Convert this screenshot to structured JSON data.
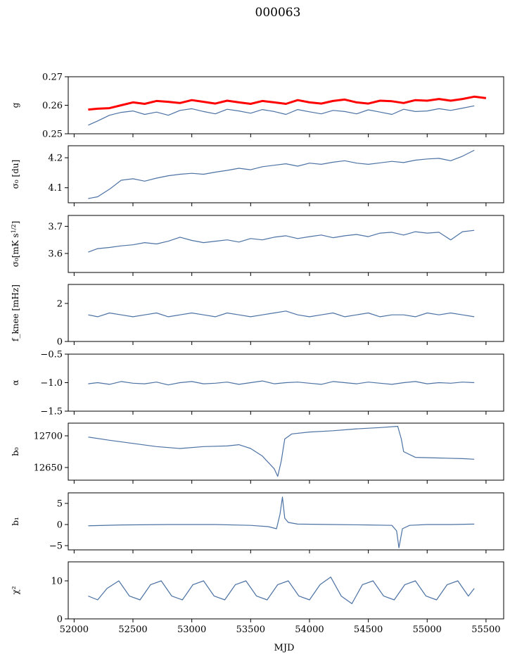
{
  "figure": {
    "title": "000063",
    "xlabel": "MJD"
  },
  "colors": {
    "series": "#4c72a4",
    "reference": "#ff0000"
  },
  "chart_data": [
    {
      "type": "line",
      "ylabel": "g",
      "ylim": [
        0.25,
        0.27
      ],
      "yticks": [
        0.25,
        0.26,
        0.27
      ],
      "yticklabels": [
        "0.25",
        "0.26",
        "0.27"
      ],
      "xlim": [
        51950,
        55650
      ],
      "series": [
        {
          "role": "reference",
          "color": "#ff0000",
          "x": [
            52120,
            52200,
            52300,
            52400,
            52500,
            52600,
            52700,
            52800,
            52900,
            53000,
            53100,
            53200,
            53300,
            53400,
            53500,
            53600,
            53700,
            53800,
            53900,
            54000,
            54100,
            54200,
            54300,
            54400,
            54500,
            54600,
            54700,
            54800,
            54900,
            55000,
            55100,
            55200,
            55300,
            55400,
            55500
          ],
          "y": [
            0.2585,
            0.2588,
            0.259,
            0.26,
            0.261,
            0.2605,
            0.2615,
            0.2612,
            0.2608,
            0.2618,
            0.2612,
            0.2606,
            0.2616,
            0.261,
            0.2605,
            0.2615,
            0.261,
            0.2605,
            0.2618,
            0.261,
            0.2606,
            0.2615,
            0.262,
            0.261,
            0.2606,
            0.2616,
            0.2614,
            0.2608,
            0.2618,
            0.2616,
            0.2622,
            0.2616,
            0.2622,
            0.263,
            0.2625
          ]
        },
        {
          "role": "measured",
          "color": "#4c72a4",
          "x": [
            52120,
            52200,
            52300,
            52400,
            52500,
            52600,
            52700,
            52800,
            52900,
            53000,
            53100,
            53200,
            53300,
            53400,
            53500,
            53600,
            53700,
            53800,
            53900,
            54000,
            54100,
            54200,
            54300,
            54400,
            54500,
            54600,
            54700,
            54800,
            54900,
            55000,
            55100,
            55200,
            55300,
            55400
          ],
          "y": [
            0.253,
            0.2545,
            0.2565,
            0.2575,
            0.258,
            0.2568,
            0.2576,
            0.2565,
            0.2582,
            0.2588,
            0.2578,
            0.257,
            0.2586,
            0.258,
            0.2572,
            0.2585,
            0.2578,
            0.2568,
            0.2585,
            0.2577,
            0.257,
            0.2582,
            0.2578,
            0.257,
            0.2584,
            0.2576,
            0.2568,
            0.2586,
            0.2578,
            0.258,
            0.2588,
            0.2582,
            0.259,
            0.2598
          ]
        }
      ]
    },
    {
      "type": "line",
      "ylabel": "σ₀ [du]",
      "ylim": [
        4.05,
        4.24
      ],
      "yticks": [
        4.1,
        4.2
      ],
      "yticklabels": [
        "4.1",
        "4.2"
      ],
      "xlim": [
        51950,
        55650
      ],
      "series": [
        {
          "role": "measured",
          "color": "#4c72a4",
          "x": [
            52120,
            52200,
            52300,
            52400,
            52500,
            52600,
            52700,
            52800,
            52900,
            53000,
            53100,
            53200,
            53300,
            53400,
            53500,
            53600,
            53700,
            53800,
            53900,
            54000,
            54100,
            54200,
            54300,
            54400,
            54500,
            54600,
            54700,
            54800,
            54900,
            55000,
            55100,
            55200,
            55300,
            55400
          ],
          "y": [
            4.064,
            4.07,
            4.095,
            4.125,
            4.13,
            4.122,
            4.132,
            4.14,
            4.145,
            4.148,
            4.145,
            4.152,
            4.158,
            4.165,
            4.16,
            4.17,
            4.175,
            4.18,
            4.172,
            4.182,
            4.178,
            4.185,
            4.19,
            4.182,
            4.178,
            4.183,
            4.188,
            4.184,
            4.192,
            4.196,
            4.198,
            4.19,
            4.205,
            4.225
          ]
        }
      ]
    },
    {
      "type": "line",
      "ylabel": "σ₀[mK s^1/2]",
      "ylim": [
        3.53,
        3.74
      ],
      "yticks": [
        3.6,
        3.7
      ],
      "yticklabels": [
        "3.6",
        "3.7"
      ],
      "xlim": [
        51950,
        55650
      ],
      "series": [
        {
          "role": "measured",
          "color": "#4c72a4",
          "x": [
            52120,
            52200,
            52300,
            52400,
            52500,
            52600,
            52700,
            52800,
            52900,
            53000,
            53100,
            53200,
            53300,
            53400,
            53500,
            53600,
            53700,
            53800,
            53900,
            54000,
            54100,
            54200,
            54300,
            54400,
            54500,
            54600,
            54700,
            54800,
            54900,
            55000,
            55100,
            55200,
            55300,
            55400
          ],
          "y": [
            3.605,
            3.618,
            3.622,
            3.628,
            3.632,
            3.64,
            3.635,
            3.645,
            3.66,
            3.648,
            3.64,
            3.645,
            3.65,
            3.642,
            3.655,
            3.65,
            3.66,
            3.665,
            3.655,
            3.662,
            3.668,
            3.658,
            3.665,
            3.67,
            3.662,
            3.675,
            3.678,
            3.668,
            3.68,
            3.675,
            3.678,
            3.65,
            3.68,
            3.685
          ]
        }
      ]
    },
    {
      "type": "line",
      "ylabel": "f_knee [mHz]",
      "ylim": [
        0,
        3
      ],
      "yticks": [
        0,
        2
      ],
      "yticklabels": [
        "0",
        "2"
      ],
      "xlim": [
        51950,
        55650
      ],
      "series": [
        {
          "role": "measured",
          "color": "#4c72a4",
          "x": [
            52120,
            52200,
            52300,
            52400,
            52500,
            52600,
            52700,
            52800,
            52900,
            53000,
            53100,
            53200,
            53300,
            53400,
            53500,
            53600,
            53700,
            53800,
            53900,
            54000,
            54100,
            54200,
            54300,
            54400,
            54500,
            54600,
            54700,
            54800,
            54900,
            55000,
            55100,
            55200,
            55300,
            55400
          ],
          "y": [
            1.4,
            1.3,
            1.5,
            1.4,
            1.3,
            1.4,
            1.5,
            1.3,
            1.4,
            1.5,
            1.4,
            1.3,
            1.5,
            1.4,
            1.3,
            1.4,
            1.5,
            1.6,
            1.4,
            1.3,
            1.4,
            1.5,
            1.3,
            1.4,
            1.5,
            1.3,
            1.4,
            1.4,
            1.3,
            1.5,
            1.4,
            1.5,
            1.4,
            1.3
          ]
        }
      ]
    },
    {
      "type": "line",
      "ylabel": "α",
      "ylim": [
        -1.5,
        -0.5
      ],
      "yticks": [
        -1.5,
        -1.0,
        -0.5
      ],
      "yticklabels": [
        "−1.5",
        "−1.0",
        "−0.5"
      ],
      "xlim": [
        51950,
        55650
      ],
      "series": [
        {
          "role": "measured",
          "color": "#4c72a4",
          "x": [
            52120,
            52200,
            52300,
            52400,
            52500,
            52600,
            52700,
            52800,
            52900,
            53000,
            53100,
            53200,
            53300,
            53400,
            53500,
            53600,
            53700,
            53800,
            53900,
            54000,
            54100,
            54200,
            54300,
            54400,
            54500,
            54600,
            54700,
            54800,
            54900,
            55000,
            55100,
            55200,
            55300,
            55400
          ],
          "y": [
            -1.02,
            -1.0,
            -1.03,
            -0.98,
            -1.01,
            -1.02,
            -0.99,
            -1.04,
            -1.0,
            -0.98,
            -1.02,
            -1.01,
            -0.99,
            -1.03,
            -1.0,
            -0.97,
            -1.02,
            -1.0,
            -0.99,
            -1.01,
            -1.03,
            -0.98,
            -1.0,
            -1.02,
            -0.99,
            -1.01,
            -1.03,
            -1.0,
            -0.98,
            -1.02,
            -1.0,
            -1.01,
            -0.99,
            -1.0
          ]
        }
      ]
    },
    {
      "type": "line",
      "ylabel": "b₀",
      "ylim": [
        12630,
        12720
      ],
      "yticks": [
        12650,
        12700
      ],
      "yticklabels": [
        "12650",
        "12700"
      ],
      "xlim": [
        51950,
        55650
      ],
      "series": [
        {
          "role": "measured",
          "color": "#4c72a4",
          "x": [
            52120,
            52300,
            52500,
            52700,
            52900,
            53100,
            53300,
            53400,
            53500,
            53600,
            53700,
            53730,
            53760,
            53790,
            53850,
            54000,
            54200,
            54400,
            54600,
            54750,
            54780,
            54800,
            54900,
            55100,
            55300,
            55400
          ],
          "y": [
            12698,
            12693,
            12688,
            12683,
            12680,
            12683,
            12684,
            12686,
            12680,
            12668,
            12648,
            12636,
            12660,
            12695,
            12703,
            12706,
            12708,
            12711,
            12713,
            12715,
            12695,
            12675,
            12666,
            12665,
            12664,
            12663
          ]
        }
      ]
    },
    {
      "type": "line",
      "ylabel": "b₁",
      "ylim": [
        -6,
        7.5
      ],
      "yticks": [
        -5,
        0,
        5
      ],
      "yticklabels": [
        "−5",
        "0",
        "5"
      ],
      "xlim": [
        51950,
        55650
      ],
      "series": [
        {
          "role": "measured",
          "color": "#4c72a4",
          "x": [
            52120,
            52400,
            52800,
            53200,
            53500,
            53650,
            53720,
            53750,
            53770,
            53790,
            53820,
            53900,
            54200,
            54500,
            54700,
            54740,
            54760,
            54790,
            54850,
            55000,
            55200,
            55400
          ],
          "y": [
            -0.3,
            -0.1,
            0.0,
            0.0,
            -0.2,
            -0.5,
            -1.0,
            2.5,
            6.5,
            1.5,
            0.5,
            0.1,
            0.0,
            -0.1,
            -0.2,
            -1.5,
            -5.5,
            -1.0,
            -0.2,
            0.0,
            0.0,
            0.1
          ]
        }
      ]
    },
    {
      "type": "line",
      "ylabel": "χ²",
      "ylim": [
        0,
        15
      ],
      "yticks": [
        0,
        10
      ],
      "yticklabels": [
        "0",
        "10"
      ],
      "xlim": [
        51950,
        55650
      ],
      "series": [
        {
          "role": "measured",
          "color": "#4c72a4",
          "x": [
            52120,
            52200,
            52280,
            52380,
            52470,
            52560,
            52650,
            52740,
            52830,
            52920,
            53010,
            53100,
            53190,
            53280,
            53370,
            53460,
            53550,
            53640,
            53730,
            53820,
            53910,
            54000,
            54090,
            54180,
            54270,
            54360,
            54450,
            54540,
            54630,
            54720,
            54810,
            54900,
            54990,
            55080,
            55170,
            55260,
            55350,
            55400
          ],
          "y": [
            6,
            5,
            8,
            10,
            6,
            5,
            9,
            10,
            6,
            5,
            9,
            10,
            6,
            5,
            9,
            10,
            6,
            5,
            9,
            10,
            6,
            5,
            9,
            11,
            6,
            4,
            9,
            10,
            6,
            5,
            9,
            10,
            6,
            5,
            9,
            10,
            6,
            8
          ]
        }
      ]
    }
  ],
  "xaxis": {
    "ticks": [
      52000,
      52500,
      53000,
      53500,
      54000,
      54500,
      55000,
      55500
    ],
    "ticklabels": [
      "52000",
      "52500",
      "53000",
      "53500",
      "54000",
      "54500",
      "55000",
      "55500"
    ]
  }
}
